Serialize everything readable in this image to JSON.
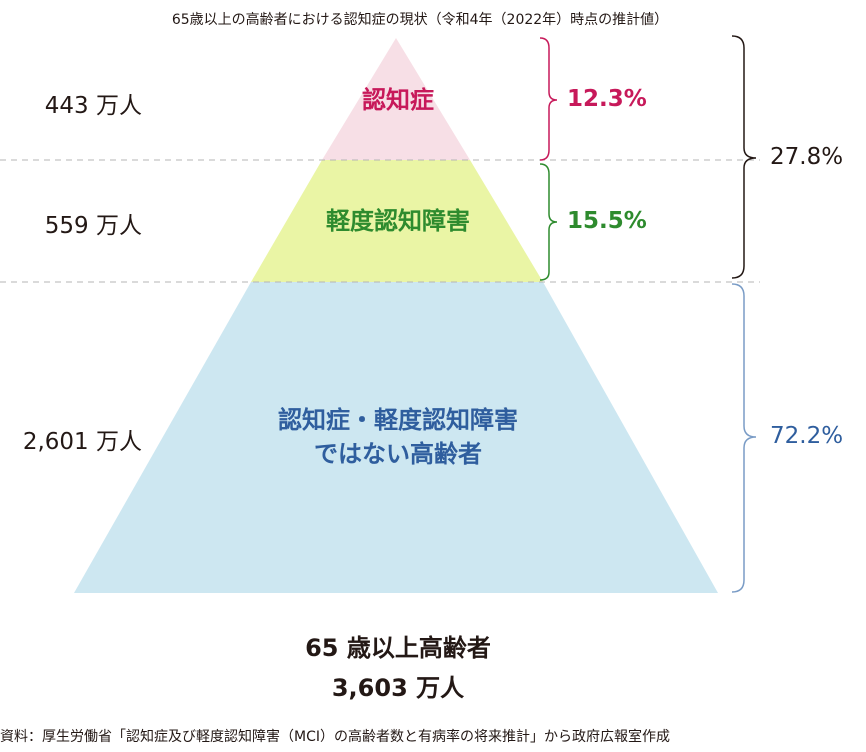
{
  "title": "65歳以上の高齢者における認知症の現状（令和4年（2022年）時点の推計値）",
  "segments": [
    {
      "label": "認知症",
      "count": "443 万人",
      "percent": "12.3%",
      "color": "#f7dfe6",
      "text_color": "#c7195a"
    },
    {
      "label": "軽度認知障害",
      "count": "559 万人",
      "percent": "15.5%",
      "color": "#eaf5a5",
      "text_color": "#2e8b2e"
    },
    {
      "label_line1": "認知症・軽度認知障害",
      "label_line2": "ではない高齢者",
      "count": "2,601 万人",
      "percent": "72.2%",
      "color": "#cde7f1",
      "text_color": "#2f5e9e"
    }
  ],
  "combined_percent": "27.8%",
  "total": {
    "label": "65 歳以上高齢者",
    "value": "3,603 万人"
  },
  "source": "資料：厚生労働省「認知症及び軽度認知障害（MCI）の高齢者数と有病率の将来推計」から政府広報室作成",
  "colors": {
    "bracket_top": "#c7195a",
    "bracket_mid": "#2e8b2e",
    "bracket_bottom": "#7a9cc6",
    "bracket_combined": "#231815",
    "divider": "#b5b5b5"
  }
}
